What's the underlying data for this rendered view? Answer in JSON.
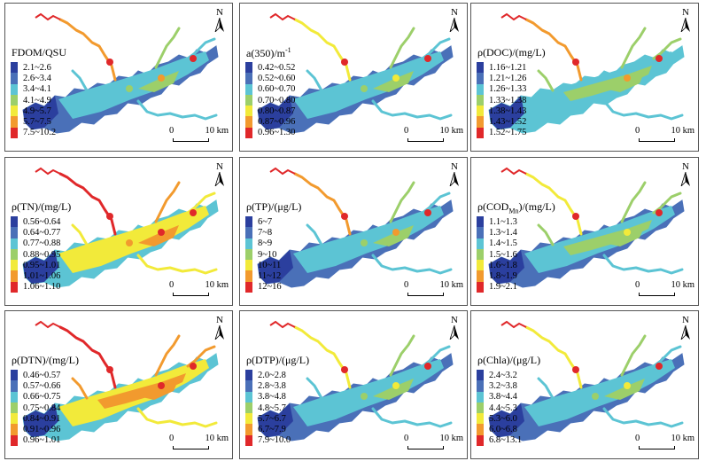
{
  "panels": [
    {
      "id": "fdom",
      "title_pre": "FDOM/QSU",
      "title_sub": "",
      "title_post": "",
      "legend": [
        "2.1~2.6",
        "2.6~3.4",
        "3.4~4.1",
        "4.1~4.9",
        "4.9~5.7",
        "5.7~7.5",
        "7.5~10.2"
      ]
    },
    {
      "id": "a350",
      "title_pre": "a(350)/m",
      "title_sub": "",
      "title_post": "-1",
      "legend": [
        "0.42~0.52",
        "0.52~0.60",
        "0.60~0.70",
        "0.70~0.80",
        "0.80~0.87",
        "0.87~0.96",
        "0.96~1.30"
      ]
    },
    {
      "id": "doc",
      "title_pre": "ρ(DOC)/(mg/L)",
      "title_sub": "",
      "title_post": "",
      "legend": [
        "1.16~1.21",
        "1.21~1.26",
        "1.26~1.33",
        "1.33~1.38",
        "1.38~1.43",
        "1.43~1.52",
        "1.52~1.75"
      ]
    },
    {
      "id": "tn",
      "title_pre": "ρ(TN)/(mg/L)",
      "title_sub": "",
      "title_post": "",
      "legend": [
        "0.56~0.64",
        "0.64~0.77",
        "0.77~0.88",
        "0.88~0.95",
        "0.95~1.01",
        "1.01~1.06",
        "1.06~1.10"
      ]
    },
    {
      "id": "tp",
      "title_pre": "ρ(TP)/(μg/L)",
      "title_sub": "",
      "title_post": "",
      "legend": [
        "6~7",
        "7~8",
        "8~9",
        "9~10",
        "10~11",
        "11~12",
        "12~16"
      ]
    },
    {
      "id": "codmn",
      "title_pre": "ρ(COD",
      "title_sub": "Mn",
      "title_post": ")/(mg/L)",
      "legend": [
        "1.1~1.3",
        "1.3~1.4",
        "1.4~1.5",
        "1.5~1.6",
        "1.6~1.8",
        "1.8~1.9",
        "1.9~2.1"
      ]
    },
    {
      "id": "dtn",
      "title_pre": "ρ(DTN)/(mg/L)",
      "title_sub": "",
      "title_post": "",
      "legend": [
        "0.46~0.57",
        "0.57~0.66",
        "0.66~0.75",
        "0.75~0.84",
        "0.84~0.91",
        "0.91~0.96",
        "0.96~1.01"
      ]
    },
    {
      "id": "dtp",
      "title_pre": "ρ(DTP)/(μg/L)",
      "title_sub": "",
      "title_post": "",
      "legend": [
        "2.0~2.8",
        "2.8~3.8",
        "3.8~4.8",
        "4.8~5.7",
        "5.7~6.7",
        "6.7~7.9",
        "7.9~10.0"
      ]
    },
    {
      "id": "chla",
      "title_pre": "ρ(Chla)/(μg/L)",
      "title_sub": "",
      "title_post": "",
      "legend": [
        "2.4~3.2",
        "3.2~3.8",
        "3.8~4.4",
        "4.4~5.3",
        "5.3~6.0",
        "6.0~6.8",
        "6.8~13.1"
      ]
    }
  ],
  "legend_colors": [
    "#2b3f9e",
    "#4a70b8",
    "#5cc4d4",
    "#9ccf6a",
    "#f2ea3a",
    "#f29a2e",
    "#e0282a"
  ],
  "north_label": "N",
  "scale_start": "0",
  "scale_end": "10 km",
  "icons": {
    "north": "north-arrow-icon"
  }
}
